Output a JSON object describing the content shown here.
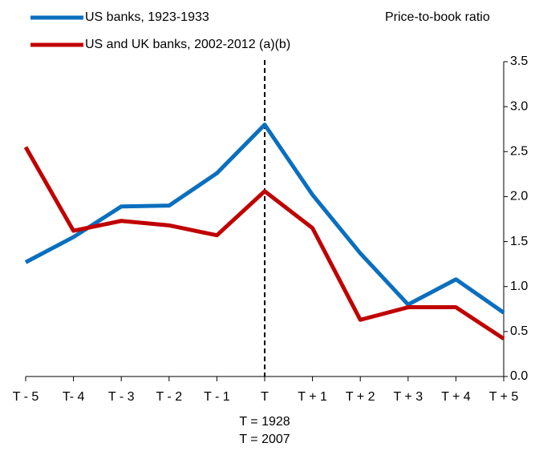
{
  "chart_data": {
    "type": "line",
    "y_label": "Price-to-book ratio",
    "categories": [
      "T - 5",
      "T- 4",
      "T - 3",
      "T - 2",
      "T - 1",
      "T",
      "T + 1",
      "T + 2",
      "T + 3",
      "T + 4",
      "T + 5"
    ],
    "series": [
      {
        "name": "US banks, 1923-1933",
        "color": "#0a6fbf",
        "values": [
          1.27,
          1.55,
          1.89,
          1.9,
          2.26,
          2.8,
          2.02,
          1.37,
          0.8,
          1.08,
          0.71
        ]
      },
      {
        "name": "US and UK banks, 2002-2012 (a)(b)",
        "color": "#c00000",
        "values": [
          2.55,
          1.62,
          1.73,
          1.68,
          1.57,
          2.06,
          1.65,
          0.63,
          0.77,
          0.77,
          0.42
        ]
      }
    ],
    "ylim": [
      0,
      3.5
    ],
    "yticks": [
      {
        "value": 0,
        "label": "0.0"
      },
      0.5,
      {
        "value": 1,
        "label": "1.0"
      },
      1.5,
      {
        "value": 2,
        "label": "2.0"
      },
      2.5,
      {
        "value": 3,
        "label": "3.0"
      },
      3.5
    ],
    "annotations": [
      "T = 1928",
      "T = 2007"
    ]
  }
}
